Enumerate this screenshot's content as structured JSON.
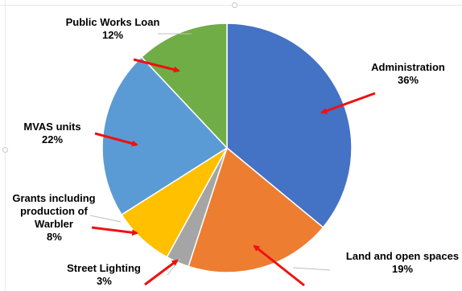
{
  "chart_data": {
    "type": "pie",
    "title": "",
    "slices": [
      {
        "label": "Administration",
        "value": 36,
        "value_label": "36%",
        "color": "#4472C4"
      },
      {
        "label": "Land and open spaces",
        "value": 19,
        "value_label": "19%",
        "color": "#ED7D31"
      },
      {
        "label": "Street Lighting",
        "value": 3,
        "value_label": "3%",
        "color": "#A5A5A5"
      },
      {
        "label": "Grants including production of Warbler",
        "label_lines": [
          "Grants including",
          "production of",
          "Warbler"
        ],
        "value": 8,
        "value_label": "8%",
        "color": "#FFC000"
      },
      {
        "label": "MVAS units",
        "value": 22,
        "value_label": "22%",
        "color": "#5B9BD5"
      },
      {
        "label": "Public Works Loan",
        "value": 12,
        "value_label": "12%",
        "color": "#70AD47"
      }
    ],
    "start_angle_deg": 0,
    "direction": "clockwise",
    "legend": "none",
    "annotation_arrow_color": "#EE1111"
  }
}
